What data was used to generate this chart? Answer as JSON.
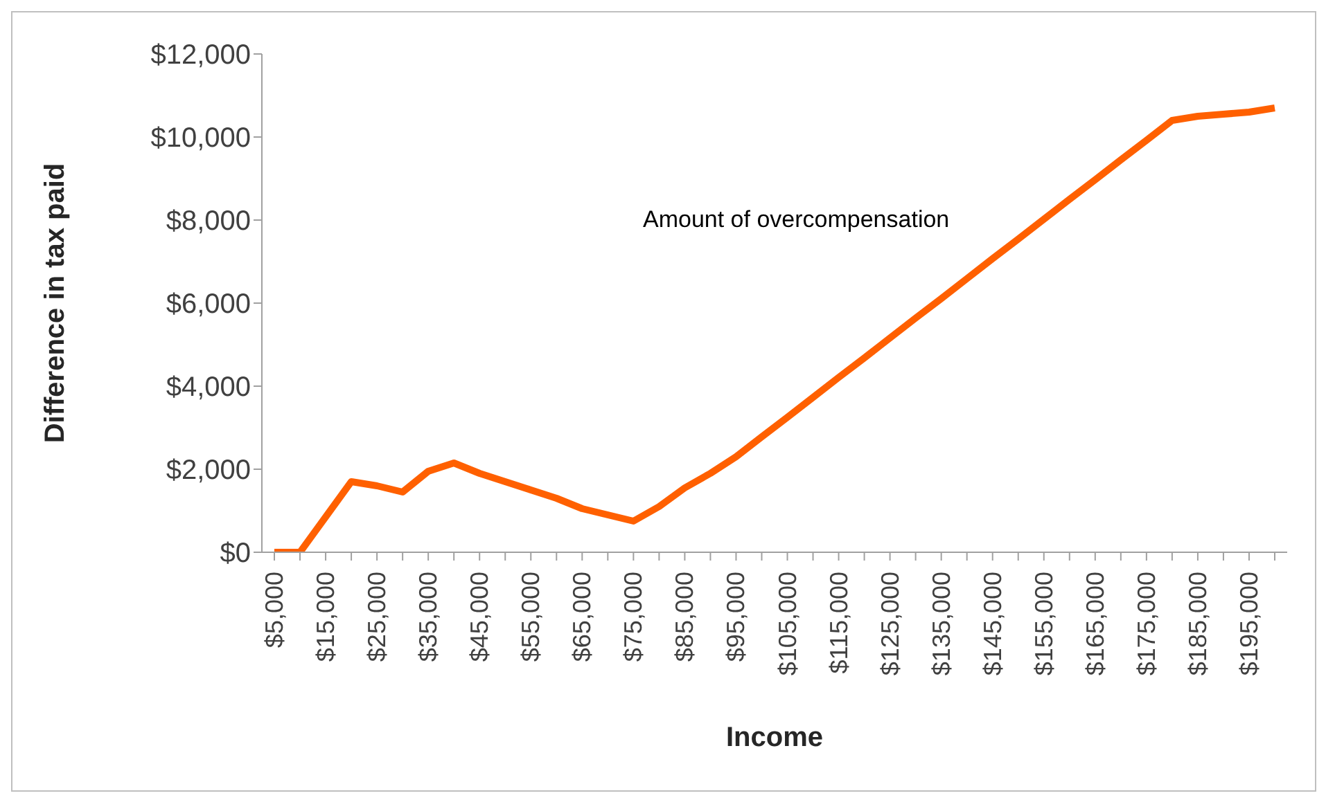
{
  "chart_data": {
    "type": "line",
    "xlabel": "Income",
    "ylabel": "Difference in tax paid",
    "annotations": [
      "Amount of overcompensation"
    ],
    "categories": [
      "$5,000",
      null,
      "$15,000",
      null,
      "$25,000",
      null,
      "$35,000",
      null,
      "$45,000",
      null,
      "$55,000",
      null,
      "$65,000",
      null,
      "$75,000",
      null,
      "$85,000",
      null,
      "$95,000",
      null,
      "$105,000",
      null,
      "$115,000",
      null,
      "$125,000",
      null,
      "$135,000",
      null,
      "$145,000",
      null,
      "$155,000",
      null,
      "$165,000",
      null,
      "$175,000",
      null,
      "$185,000",
      null,
      "$195,000",
      null
    ],
    "series": [
      {
        "color": "#ff6000",
        "values": [
          0,
          0,
          850,
          1700,
          1600,
          1450,
          1950,
          2150,
          1900,
          1700,
          1500,
          1300,
          1050,
          900,
          750,
          1100,
          1550,
          1900,
          2300,
          2780,
          3250,
          3730,
          4210,
          4680,
          5160,
          5640,
          6110,
          6590,
          7070,
          7540,
          8020,
          8500,
          8970,
          9450,
          9920,
          10400,
          10500,
          10550,
          10600,
          10700
        ]
      }
    ],
    "ylim": [
      0,
      12000
    ],
    "yticks": [
      {
        "value": 0,
        "label": "$0"
      },
      {
        "value": 2000,
        "label": "$2,000"
      },
      {
        "value": 4000,
        "label": "$4,000"
      },
      {
        "value": 6000,
        "label": "$6,000"
      },
      {
        "value": 8000,
        "label": "$8,000"
      },
      {
        "value": 10000,
        "label": "$10,000"
      },
      {
        "value": 12000,
        "label": "$12,000"
      }
    ],
    "grid": false,
    "legend": false,
    "marker": "none",
    "line_style": "solid"
  }
}
